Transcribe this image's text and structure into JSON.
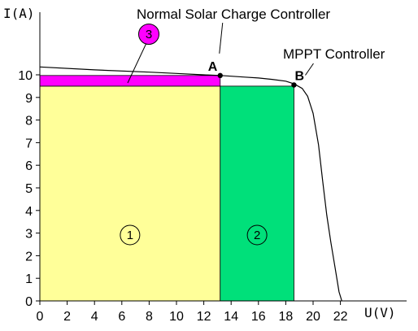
{
  "chart_data": {
    "type": "area",
    "xlabel": "U(V)",
    "ylabel": "I(A)",
    "xlim": [
      0,
      22
    ],
    "ylim": [
      0,
      10
    ],
    "x_ticks": [
      "0",
      "2",
      "4",
      "6",
      "8",
      "10",
      "12",
      "14",
      "16",
      "18",
      "20",
      "22"
    ],
    "y_ticks": [
      "0",
      "1",
      "2",
      "3",
      "4",
      "5",
      "6",
      "7",
      "8",
      "9",
      "10"
    ],
    "iv_curve": {
      "x": [
        0,
        4,
        8,
        10,
        12,
        13.2,
        14,
        15,
        16,
        17,
        18,
        18.6,
        19.2,
        19.6,
        20,
        20.4,
        20.7,
        21,
        21.3,
        21.6,
        21.9,
        22.1
      ],
      "y": [
        10.35,
        10.22,
        10.12,
        10.06,
        10.0,
        9.97,
        9.94,
        9.9,
        9.86,
        9.8,
        9.72,
        9.6,
        9.4,
        9.05,
        8.3,
        6.9,
        5.3,
        3.8,
        2.6,
        1.5,
        0.4,
        0
      ]
    },
    "regions": [
      {
        "label": "1",
        "x": [
          0,
          13.2
        ],
        "y": [
          0,
          9.5
        ],
        "color": "#ffff99"
      },
      {
        "label": "2",
        "x": [
          13.2,
          18.6
        ],
        "y": [
          0,
          9.5
        ],
        "color": "#00e07a"
      },
      {
        "label": "3",
        "x": [
          0,
          13.2
        ],
        "y": [
          9.5,
          9.97
        ],
        "color": "#ff00ff"
      }
    ],
    "points": [
      {
        "label": "A",
        "x": 13.2,
        "y": 9.97,
        "annotation": "Normal Solar Charge Controller"
      },
      {
        "label": "B",
        "x": 18.6,
        "y": 9.55,
        "annotation": "MPPT  Controller"
      }
    ],
    "colors": {
      "region1": "#ffff99",
      "region2": "#00e07a",
      "region3": "#ff00ff",
      "curve": "#000000"
    }
  }
}
